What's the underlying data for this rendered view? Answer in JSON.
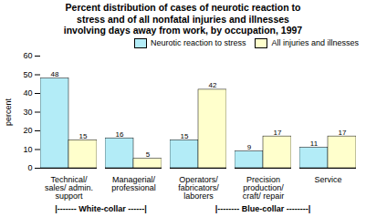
{
  "chart_data": {
    "type": "bar",
    "title": "Percent distribution of cases of neurotic reaction to\nstress and of all nonfatal injuries and illnesses\ninvolving days away from work, by occupation, 1997",
    "categories": [
      "Technical/\nsales/ admin.\nsupport",
      "Managerial/\nprofessional",
      "Operators/\nfabricators/\nlaborers",
      "Precision\nproduction/\ncraft/ repair",
      "Service"
    ],
    "series": [
      {
        "name": "Neurotic reaction to stress",
        "color": "#b3ecf7",
        "values": [
          48,
          16,
          15,
          9,
          11
        ]
      },
      {
        "name": "All injuries and illnesses",
        "color": "#ffffcc",
        "values": [
          15,
          5,
          42,
          17,
          17
        ]
      }
    ],
    "ylabel": "percent",
    "ylim": [
      0,
      60
    ],
    "yticks": [
      0,
      10,
      20,
      30,
      40,
      50,
      60
    ],
    "grid": false,
    "data_labels": true,
    "legend": "upper right",
    "annotations": [
      {
        "text": "|------- White-collar ------|",
        "categories": [
          "Technical/\nsales/ admin.\nsupport",
          "Managerial/\nprofessional"
        ]
      },
      {
        "text": "|-------- Blue-collar --------|",
        "categories": [
          "Operators/\nfabricators/\nlaborers",
          "Precision\nproduction/\ncraft/ repair",
          "Service"
        ]
      }
    ]
  }
}
